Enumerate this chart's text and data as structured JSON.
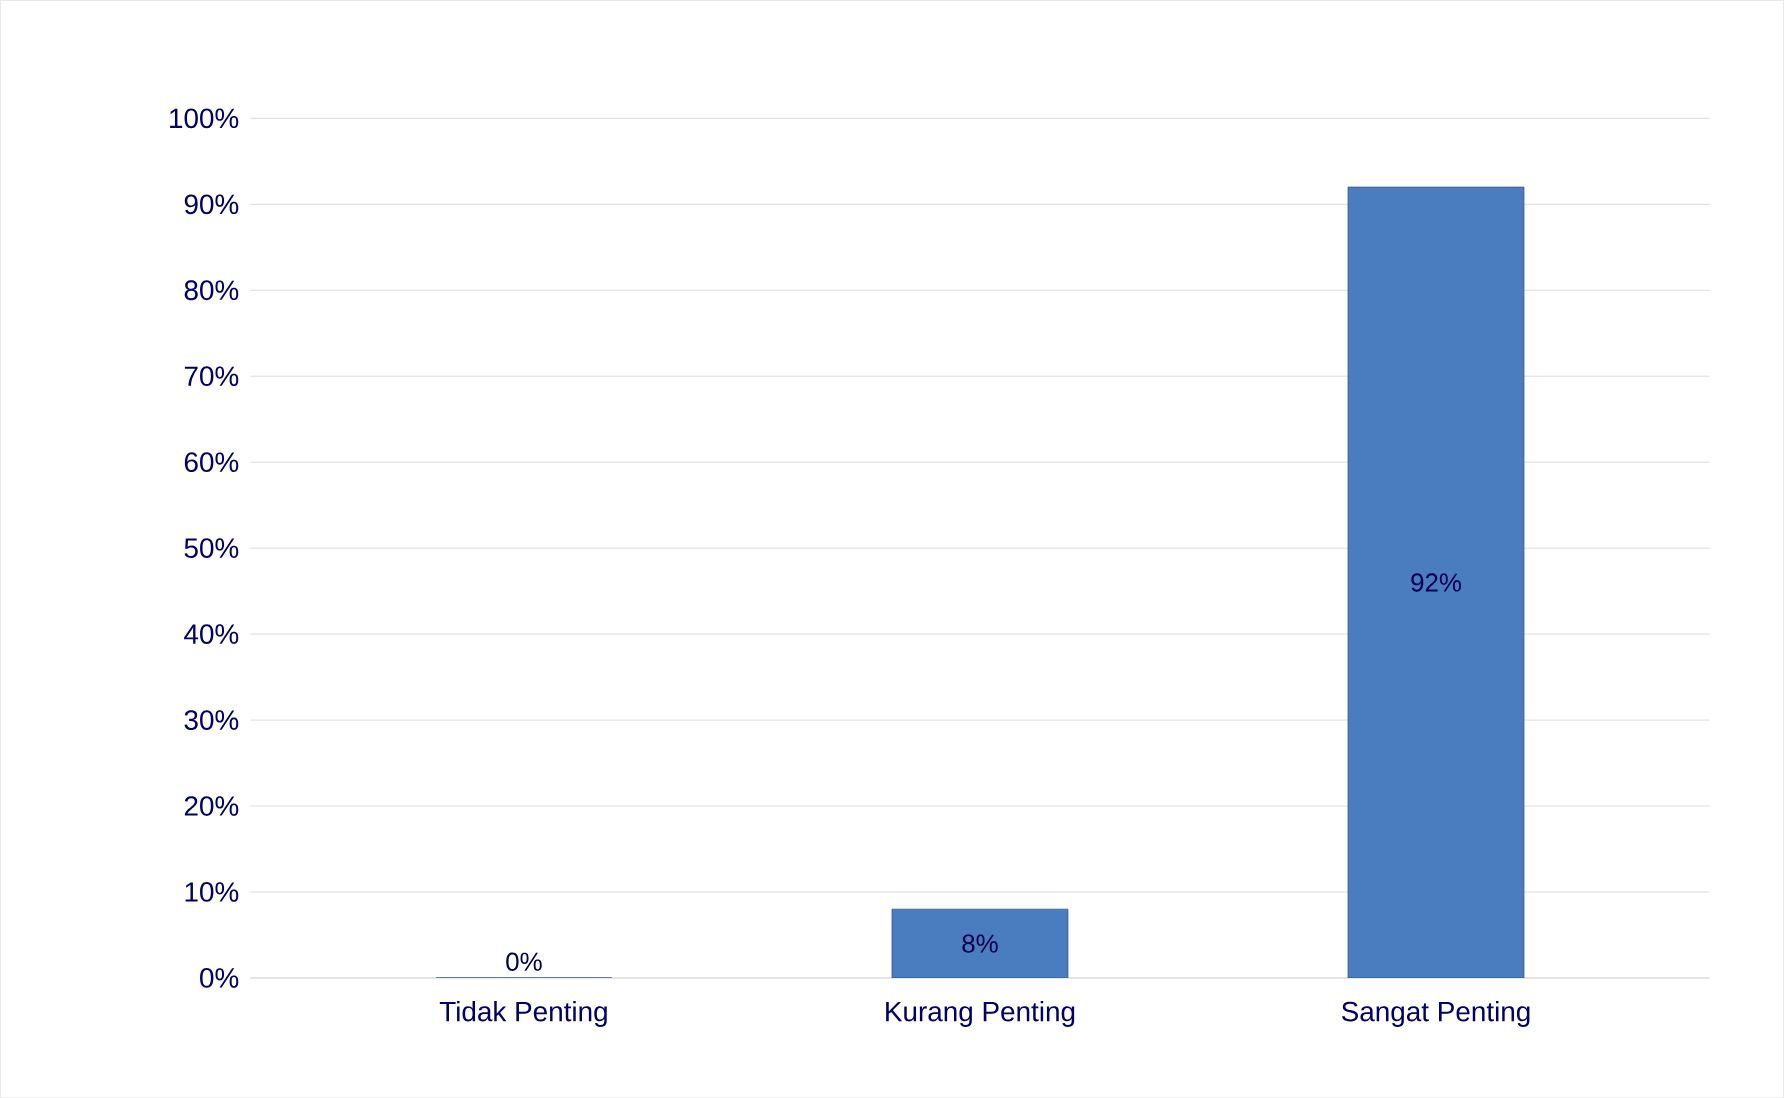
{
  "chart_data": {
    "type": "bar",
    "categories": [
      "Tidak Penting",
      "Kurang Penting",
      "Sangat Penting"
    ],
    "values": [
      0,
      8,
      92
    ],
    "value_labels": [
      "0%",
      "8%",
      "92%"
    ],
    "color": "#4a7cc0",
    "ylim": [
      0,
      100
    ],
    "yticks": [
      {
        "value": 0,
        "label": "0%"
      },
      {
        "value": 10,
        "label": "10%"
      },
      {
        "value": 20,
        "label": "20%"
      },
      {
        "value": 30,
        "label": "30%"
      },
      {
        "value": 40,
        "label": "40%"
      },
      {
        "value": 50,
        "label": "50%"
      },
      {
        "value": 60,
        "label": "60%"
      },
      {
        "value": 70,
        "label": "70%"
      },
      {
        "value": 80,
        "label": "80%"
      },
      {
        "value": 90,
        "label": "90%"
      },
      {
        "value": 100,
        "label": "100%"
      }
    ],
    "grid": "y"
  }
}
